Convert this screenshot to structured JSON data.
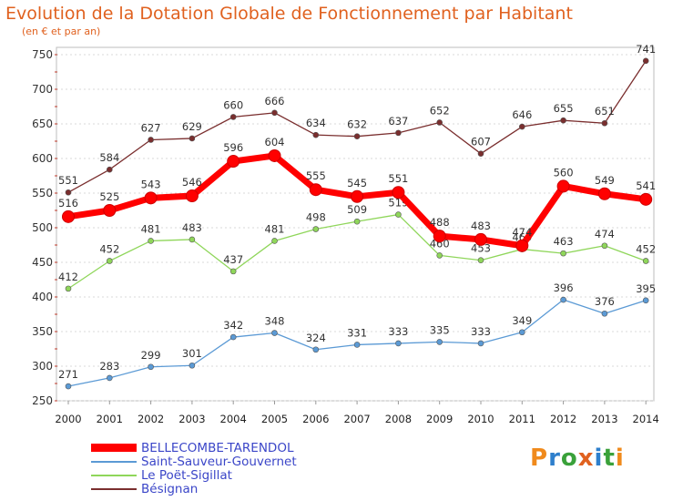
{
  "header": {
    "title": "Evolution de la Dotation Globale de Fonctionnement par Habitant",
    "subtitle": "(en € et par an)"
  },
  "logo": {
    "text": "Proxiti"
  },
  "chart_data": {
    "type": "line",
    "title": "Evolution de la Dotation Globale de Fonctionnement par Habitant",
    "subtitle": "(en € et par an)",
    "x": [
      "2000",
      "2001",
      "2002",
      "2003",
      "2004",
      "2005",
      "2006",
      "2007",
      "2008",
      "2009",
      "2010",
      "2011",
      "2012",
      "2013",
      "2014"
    ],
    "ylim": [
      250,
      750
    ],
    "yticks": [
      250,
      300,
      350,
      400,
      450,
      500,
      550,
      600,
      650,
      700,
      750
    ],
    "grid": "horizontal",
    "legend_position": "bottom-left",
    "series": [
      {
        "name": "BELLECOMBE-TARENDOL",
        "color": "#ff0000",
        "emphasis": true,
        "values": [
          516,
          525,
          543,
          546,
          596,
          604,
          555,
          545,
          551,
          488,
          483,
          474,
          560,
          549,
          541
        ]
      },
      {
        "name": "Saint-Sauveur-Gouvernet",
        "color": "#5b9ad5",
        "values": [
          271,
          283,
          299,
          301,
          342,
          348,
          324,
          331,
          333,
          335,
          333,
          349,
          396,
          376,
          395
        ]
      },
      {
        "name": "Le Poët-Sigillat",
        "color": "#8fd65a",
        "values": [
          412,
          452,
          481,
          483,
          437,
          481,
          498,
          509,
          519,
          460,
          453,
          469,
          463,
          474,
          452
        ]
      },
      {
        "name": "Bésignan",
        "color": "#7a2e2e",
        "values": [
          551,
          584,
          627,
          629,
          660,
          666,
          634,
          632,
          637,
          652,
          607,
          646,
          655,
          651,
          741
        ]
      }
    ]
  }
}
